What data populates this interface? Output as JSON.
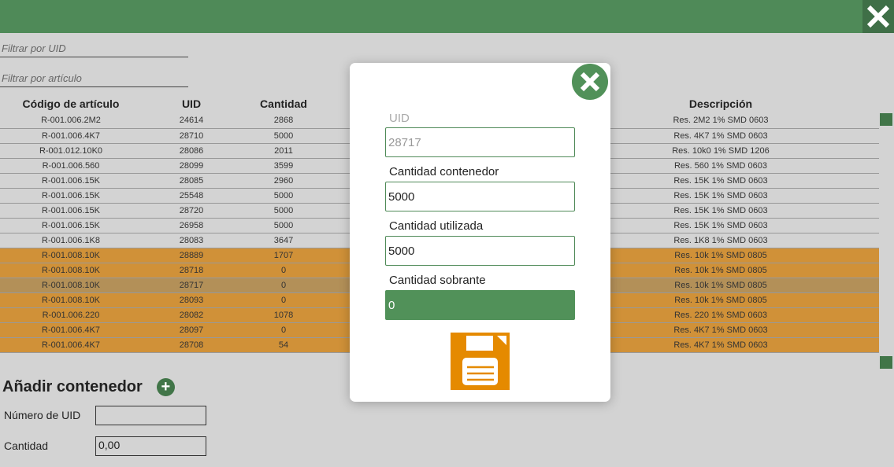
{
  "filters": {
    "uid_placeholder": "Filtrar por UID",
    "article_placeholder": "Filtrar por artículo"
  },
  "table": {
    "headers": [
      "Código de artículo",
      "UID",
      "Cantidad",
      "Descripción"
    ],
    "rows": [
      [
        "R-001.006.2M2",
        "24614",
        "2868",
        "Res. 2M2 1% SMD 0603",
        "normal"
      ],
      [
        "R-001.006.4K7",
        "28710",
        "5000",
        "Res. 4K7 1% SMD 0603",
        "normal"
      ],
      [
        "R-001.012.10K0",
        "28086",
        "2011",
        "Res. 10k0 1% SMD 1206",
        "normal"
      ],
      [
        "R-001.006.560",
        "28099",
        "3599",
        "Res. 560 1% SMD 0603",
        "normal"
      ],
      [
        "R-001.006.15K",
        "28085",
        "2960",
        "Res. 15K 1% SMD 0603",
        "normal"
      ],
      [
        "R-001.006.15K",
        "25548",
        "5000",
        "Res. 15K 1% SMD 0603",
        "normal"
      ],
      [
        "R-001.006.15K",
        "28720",
        "5000",
        "Res. 15K 1% SMD 0603",
        "normal"
      ],
      [
        "R-001.006.15K",
        "26958",
        "5000",
        "Res. 15K 1% SMD 0603",
        "normal"
      ],
      [
        "R-001.006.1K8",
        "28083",
        "3647",
        "Res. 1K8 1% SMD 0603",
        "normal"
      ],
      [
        "R-001.008.10K",
        "28889",
        "1707",
        "Res. 10k 1% SMD 0805",
        "orange"
      ],
      [
        "R-001.008.10K",
        "28718",
        "0",
        "Res. 10k 1% SMD 0805",
        "orange"
      ],
      [
        "R-001.008.10K",
        "28717",
        "0",
        "Res. 10k 1% SMD 0805",
        "selected"
      ],
      [
        "R-001.008.10K",
        "28093",
        "0",
        "Res. 10k 1% SMD 0805",
        "orange"
      ],
      [
        "R-001.006.220",
        "28082",
        "1078",
        "Res. 220 1% SMD 0603",
        "orange"
      ],
      [
        "R-001.006.4K7",
        "28097",
        "0",
        "Res. 4K7 1% SMD 0603",
        "orange"
      ],
      [
        "R-001.006.4K7",
        "28708",
        "54",
        "Res. 4K7 1% SMD 0603",
        "orange"
      ]
    ]
  },
  "add": {
    "title": "Añadir contenedor",
    "uid_label": "Número de UID",
    "uid_value": "",
    "qty_label": "Cantidad",
    "qty_value": "0,00"
  },
  "modal": {
    "uid_label": "UID",
    "uid_value": "28717",
    "container_label": "Cantidad contenedor",
    "container_value": "5000",
    "used_label": "Cantidad utilizada",
    "used_value": "5000",
    "left_label": "Cantidad sobrante",
    "left_value": "0"
  },
  "colors": {
    "header": "#4f8a58",
    "orange_row": "#d09138",
    "selected_row": "#b39058",
    "save_icon": "#e58a00"
  }
}
